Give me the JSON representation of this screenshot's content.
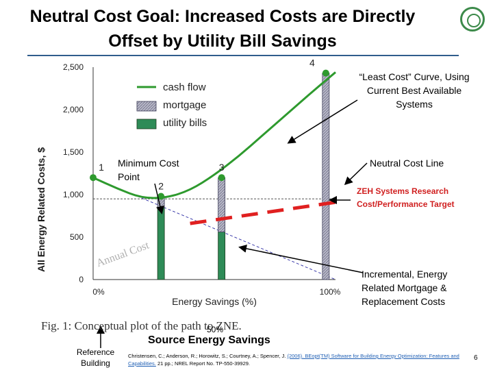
{
  "title": {
    "line1": "Neutral Cost Goal:  Increased Costs are Directly",
    "line2": "Offset by Utility Bill Savings"
  },
  "y_axis_label": "All Energy Related Costs, $",
  "chart_data": {
    "type": "bar",
    "xlabel": "Energy Savings (%)",
    "ylabel": "",
    "ylim": [
      0,
      2500
    ],
    "xlim": [
      0,
      100
    ],
    "y_ticks": [
      "0",
      "500",
      "1,000",
      "1,500",
      "2,000",
      "2,500"
    ],
    "y_tick_values": [
      0,
      500,
      1000,
      1500,
      2000,
      2500
    ],
    "x_ticks": [
      "0%",
      "100%"
    ],
    "x_tick_values": [
      0,
      100
    ],
    "legend": [
      "cash flow",
      "mortgage",
      "utility bills"
    ],
    "legend_position": "top-center",
    "cash_flow": {
      "name": "cash flow",
      "x": [
        0,
        10,
        20,
        30,
        40,
        50,
        60,
        70,
        80,
        90,
        100
      ],
      "y": [
        1200,
        1070,
        960,
        960,
        1050,
        1230,
        1450,
        1700,
        1950,
        2200,
        2440
      ]
    },
    "bars": [
      {
        "x": 28,
        "utility_bills": 850,
        "mortgage": 130
      },
      {
        "x": 53,
        "utility_bills": 560,
        "mortgage": 640
      },
      {
        "x": 96,
        "utility_bills": 0,
        "mortgage": 2430
      }
    ],
    "point_labels": [
      {
        "label": "1",
        "x": 0,
        "y": 1200
      },
      {
        "label": "2",
        "x": 28,
        "y": 980
      },
      {
        "label": "3",
        "x": 53,
        "y": 1200
      },
      {
        "label": "4",
        "x": 96,
        "y": 2430
      }
    ],
    "neutral_cost_level": 950,
    "zeh_target": {
      "x": [
        40,
        100
      ],
      "y": [
        660,
        910
      ]
    },
    "baseline_utility_decline": {
      "x": [
        0,
        100
      ],
      "y": [
        1200,
        0
      ]
    },
    "colors": {
      "cash_flow": "#2e9a2e",
      "utility_bills": "#2e8b57",
      "mortgage": "#b8b8c8",
      "zeh_target": "#e02020",
      "grid_line": "#555555"
    },
    "overlay_text": "Annual Cost"
  },
  "annotations": {
    "least_cost": "“Least Cost” Curve, Using Current Best Available Systems",
    "minimum_cost_point": "Minimum Cost Point",
    "neutral_cost_line": "Neutral Cost Line",
    "zeh_target": "ZEH Systems Research Cost/Performance Target",
    "incremental": "Incremental, Energy Related Mortgage & Replacement Costs"
  },
  "fig_caption": "Fig. 1:  Conceptual plot of the path to ZNE.",
  "overlay_50": "50%",
  "reference_building": "Reference Building",
  "source_energy_savings": "Source Energy Savings",
  "citation": {
    "text": "Christensen, C.; Anderson, R.; Horowitz, S.; Courtney, A.; Spencer, J. ",
    "link": "(2006). BEopt(TM) Software for Building Energy Optimization: Features and Capabilities.",
    "tail": " 21 pp.; NREL Report No. TP-550-39929."
  },
  "page_number": "6"
}
